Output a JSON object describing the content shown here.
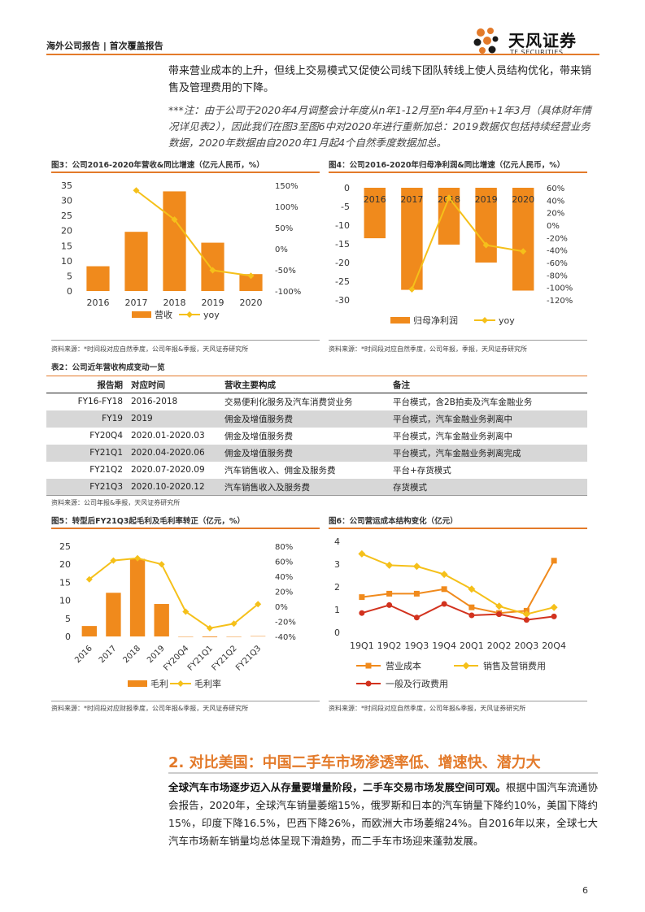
{
  "header": {
    "left": "海外公司报告 | 首次覆盖报告",
    "logo_cn": "天风证券",
    "logo_en": "TF SECURITIES"
  },
  "intro": {
    "text": "带来营业成本的上升，但线上交易模式又促使公司线下团队转线上使人员结构优化，带来销售及管理费用的下降。",
    "note": "***注：由于公司于2020年4月调整会计年度从n年1-12月至n年4月至n+1年3月（具体财年情况详见表2），因此我们在图3至图6中对2020年进行重新加总：2019数据仅包括持续经营业务数据，2020年数据由自2020年1月起4个自然季度数据加总。"
  },
  "figures": {
    "fig3": {
      "title": "图3：公司2016-2020年营收&同比增速（亿元人民币，%）",
      "source": "资料来源：*时间段对应自然季度，公司年报&季报，天风证券研究所"
    },
    "fig4": {
      "title": "图4：公司2016-2020年归母净利润&同比增速（亿元人民币，%）",
      "source": "资料来源：*时间段对应自然季度，公司年报，季报，天风证券研究所"
    },
    "fig5": {
      "title": "图5：转型后FY21Q3起毛利及毛利率转正（亿元，%）",
      "source": "资料来源：*时间段对应财报季度，公司年报&季报，天风证券研究所"
    },
    "fig6": {
      "title": "图6：公司营运成本结构变化（亿元）",
      "source": "资料来源：*时间段对应自然季度，公司年报&季报，天风证券研究所"
    }
  },
  "table": {
    "title": "表2：公司近年营收构成变动一览",
    "headers": [
      "报告期",
      "对应时间",
      "营收主要构成",
      "备注"
    ],
    "rows": [
      [
        "FY16-FY18",
        "2016-2018",
        "交易便利化服务及汽车消费贷业务",
        "平台模式，含2B拍卖及汽车金融业务"
      ],
      [
        "FY19",
        "2019",
        "佣金及增值服务费",
        "平台模式，汽车金融业务剥离中"
      ],
      [
        "FY20Q4",
        "2020.01-2020.03",
        "佣金及增值服务费",
        "平台模式，汽车金融业务剥离中"
      ],
      [
        "FY21Q1",
        "2020.04-2020.06",
        "佣金及增值服务费",
        "平台模式，汽车金融业务剥离完成"
      ],
      [
        "FY21Q2",
        "2020.07-2020.09",
        "汽车销售收入、佣金及服务费",
        "平台+存货模式"
      ],
      [
        "FY21Q3",
        "2020.10-2020.12",
        "汽车销售收入及服务费",
        "存货模式"
      ]
    ],
    "source": "资料来源：公司年报&季报，天风证券研究所"
  },
  "section": {
    "title": "2. 对比美国：中国二手车市场渗透率低、增速快、潜力大",
    "lead": "全球汽车市场逐步迈入从存量要增量阶段，二手车交易市场发展空间可观。",
    "body": "根据中国汽车流通协会报告，2020年，全球汽车销量萎缩15%，俄罗斯和日本的汽车销量下降约10%，美国下降约15%，印度下降16.5%，巴西下降26%，而欧洲大市场萎缩24%。自2016年以来，全球七大汽车市场新车销量均总体呈现下滑趋势，而二手车市场迎来蓬勃发展。"
  },
  "page_number": "6",
  "colors": {
    "accent": "#e37a2a",
    "bar": "#f08a1c",
    "line": "#f5c01a",
    "red": "#d2321e"
  },
  "chart_data": [
    {
      "type": "bar",
      "id": "fig3",
      "categories": [
        "2016",
        "2017",
        "2018",
        "2019",
        "2020"
      ],
      "series": [
        {
          "name": "营收",
          "kind": "bar",
          "axis": "left",
          "values": [
            8.2,
            19.6,
            33.0,
            16.0,
            5.6
          ]
        },
        {
          "name": "yoy",
          "kind": "line",
          "axis": "right",
          "values": [
            null,
            138,
            69,
            -51,
            -64
          ]
        }
      ],
      "ylim": [
        0,
        35
      ],
      "yticks": [
        0,
        5,
        10,
        15,
        20,
        25,
        30,
        35
      ],
      "y2lim": [
        -100,
        150
      ],
      "y2ticks": [
        "150%",
        "100%",
        "50%",
        "0%",
        "-50%",
        "-100%"
      ]
    },
    {
      "type": "bar",
      "id": "fig4",
      "categories": [
        "2016",
        "2017",
        "2018",
        "2019",
        "2020"
      ],
      "series": [
        {
          "name": "归母净利润",
          "kind": "bar",
          "axis": "left",
          "values": [
            -13.5,
            -27.3,
            -15.2,
            -20.0,
            -27.5
          ]
        },
        {
          "name": "yoy",
          "kind": "line",
          "axis": "right",
          "values": [
            null,
            -103,
            44,
            -32,
            -42
          ]
        }
      ],
      "ylim": [
        -30,
        0
      ],
      "yticks": [
        0,
        -5,
        -10,
        -15,
        -20,
        -25,
        -30
      ],
      "y2lim": [
        -120,
        60
      ],
      "y2ticks": [
        "60%",
        "40%",
        "20%",
        "0%",
        "-20%",
        "-40%",
        "-60%",
        "-80%",
        "-100%",
        "-120%"
      ]
    },
    {
      "type": "bar",
      "id": "fig5",
      "categories": [
        "2016",
        "2017",
        "2018",
        "2019",
        "FY20Q4",
        "FY21Q1",
        "FY21Q2",
        "FY21Q3"
      ],
      "series": [
        {
          "name": "毛利",
          "kind": "bar",
          "axis": "left",
          "values": [
            2.9,
            12.1,
            21.5,
            9.0,
            0,
            -0.2,
            -0.1,
            0.1
          ]
        },
        {
          "name": "毛利率",
          "kind": "line",
          "axis": "right",
          "values": [
            36,
            61,
            64,
            56,
            -7,
            -29,
            -23,
            3
          ]
        }
      ],
      "ylim": [
        0,
        25
      ],
      "yticks": [
        0,
        5,
        10,
        15,
        20,
        25
      ],
      "y2lim": [
        -40,
        80
      ],
      "y2ticks": [
        "80%",
        "60%",
        "40%",
        "20%",
        "0%",
        "-20%",
        "-40%"
      ]
    },
    {
      "type": "line",
      "id": "fig6",
      "categories": [
        "19Q1",
        "19Q2",
        "19Q3",
        "19Q4",
        "20Q1",
        "20Q2",
        "20Q3",
        "20Q4"
      ],
      "series": [
        {
          "name": "营业成本",
          "values": [
            1.55,
            1.7,
            1.7,
            1.9,
            1.1,
            0.85,
            0.95,
            3.15
          ]
        },
        {
          "name": "销售及营销费用",
          "values": [
            3.45,
            2.95,
            2.9,
            2.55,
            1.9,
            1.15,
            0.8,
            1.1
          ]
        },
        {
          "name": "一般及行政费用",
          "values": [
            0.85,
            1.2,
            0.65,
            1.25,
            0.75,
            0.8,
            0.55,
            0.7
          ]
        }
      ],
      "ylim": [
        0,
        4
      ],
      "yticks": [
        0,
        1,
        2,
        3,
        4
      ]
    }
  ]
}
